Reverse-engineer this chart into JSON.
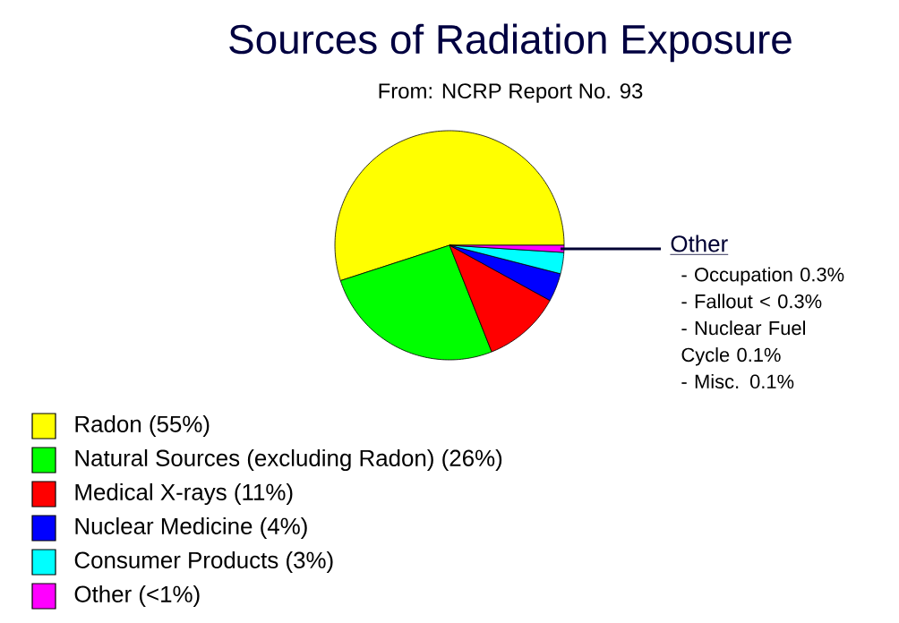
{
  "chart_data": {
    "type": "pie",
    "title": "Sources of Radiation Exposure",
    "subtitle": "From: NCRP Report No. 93",
    "categories": [
      "Radon (55%)",
      "Natural Sources (excluding Radon) (26%)",
      "Medical X-rays (11%)",
      "Nuclear Medicine (4%)",
      "Consumer Products (3%)",
      "Other (<1%)"
    ],
    "values": [
      55,
      26,
      11,
      4,
      3,
      1
    ],
    "colors": [
      "#ffff00",
      "#00ff00",
      "#ff0000",
      "#0000ff",
      "#00ffff",
      "#ff00ff"
    ],
    "legend": "bottom left",
    "annotations": [
      "Other",
      "- Occupation 0.3%",
      "- Fallout < 0.3%",
      "- Nuclear Fuel Cycle 0.1%",
      "- Misc. 0.1%"
    ]
  }
}
